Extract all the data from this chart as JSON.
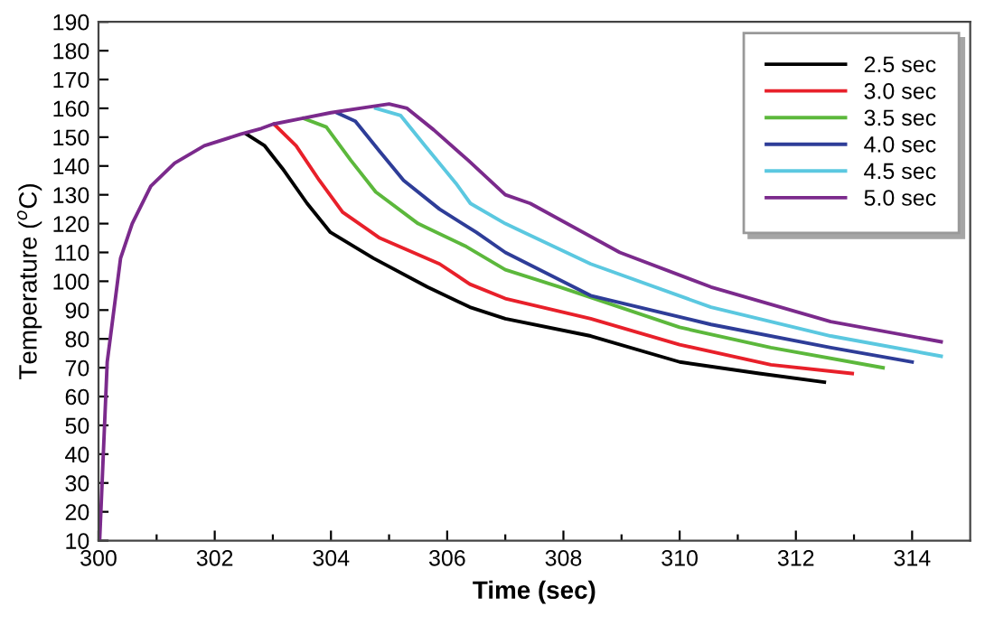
{
  "chart_data": {
    "type": "line",
    "xlabel": "Time (sec)",
    "ylabel": "Temperature ($^{o}$C)",
    "xlim": [
      300,
      315
    ],
    "ylim": [
      10,
      190
    ],
    "xticks": [
      300,
      {
        "value": 301,
        "label": null
      },
      302,
      {
        "value": 303,
        "label": null
      },
      304,
      {
        "value": 305,
        "label": null
      },
      306,
      {
        "value": 307,
        "label": null
      },
      308,
      {
        "value": 309,
        "label": null
      },
      310,
      {
        "value": 311,
        "label": null
      },
      312,
      {
        "value": 313,
        "label": null
      },
      314
    ],
    "yticks": [
      10,
      20,
      30,
      40,
      50,
      60,
      70,
      80,
      90,
      100,
      110,
      120,
      130,
      140,
      150,
      160,
      170,
      180,
      190
    ],
    "grid": false,
    "legend": "top right",
    "marker": "none",
    "line_style": "solid",
    "series": [
      {
        "name": "2.5 sec",
        "color": "#000000",
        "x": [
          302.55,
          302.86,
          303.17,
          303.59,
          303.99,
          304.73,
          305.66,
          306.39,
          307.0,
          308.47,
          310.0,
          311.37,
          312.49
        ],
        "values": [
          151,
          147,
          139,
          127,
          117,
          108,
          98,
          91,
          87,
          81,
          72,
          68,
          65
        ]
      },
      {
        "name": "3.0 sec",
        "color": "#e8202a",
        "x": [
          303.02,
          303.4,
          303.8,
          304.2,
          304.84,
          305.87,
          306.39,
          307.0,
          308.47,
          310.0,
          311.57,
          312.97
        ],
        "values": [
          154.5,
          147,
          135,
          124,
          115,
          106,
          99,
          94,
          87,
          78,
          71,
          68
        ]
      },
      {
        "name": "3.5 sec",
        "color": "#5cb83c",
        "x": [
          303.53,
          303.92,
          304.34,
          304.77,
          305.5,
          306.33,
          307.0,
          307.94,
          310.0,
          311.57,
          313.5
        ],
        "values": [
          156.5,
          153.5,
          142,
          131,
          120,
          112,
          104,
          98,
          84,
          77,
          70
        ]
      },
      {
        "name": "4.0 sec",
        "color": "#2e3d98",
        "x": [
          304.1,
          304.42,
          304.84,
          305.25,
          305.87,
          306.5,
          307.0,
          308.47,
          310.54,
          312.6,
          314.0
        ],
        "values": [
          158.5,
          155.5,
          145,
          135,
          125,
          117,
          110,
          95,
          85,
          77,
          72
        ]
      },
      {
        "name": "4.5 sec",
        "color": "#5bc8e0",
        "x": [
          304.77,
          305.2,
          305.62,
          306.15,
          306.4,
          307.0,
          308.47,
          310.54,
          312.6,
          314.5
        ],
        "values": [
          160,
          157.5,
          147,
          134,
          127,
          120,
          106,
          91,
          81,
          74
        ]
      },
      {
        "name": "5.0 sec",
        "color": "#7b2a8c",
        "x": [
          300.02,
          300.15,
          300.38,
          300.58,
          300.9,
          301.31,
          301.82,
          302.44,
          302.8,
          303.0,
          303.5,
          304.0,
          304.5,
          305.0,
          305.31,
          305.77,
          306.36,
          307.0,
          307.43,
          308.97,
          310.54,
          312.6,
          314.5
        ],
        "values": [
          10,
          72,
          108,
          120,
          133,
          141,
          147,
          151,
          153,
          154.5,
          156.5,
          158.5,
          160,
          161.5,
          160,
          152.5,
          142,
          130,
          127,
          110,
          98,
          86,
          79
        ]
      }
    ]
  }
}
